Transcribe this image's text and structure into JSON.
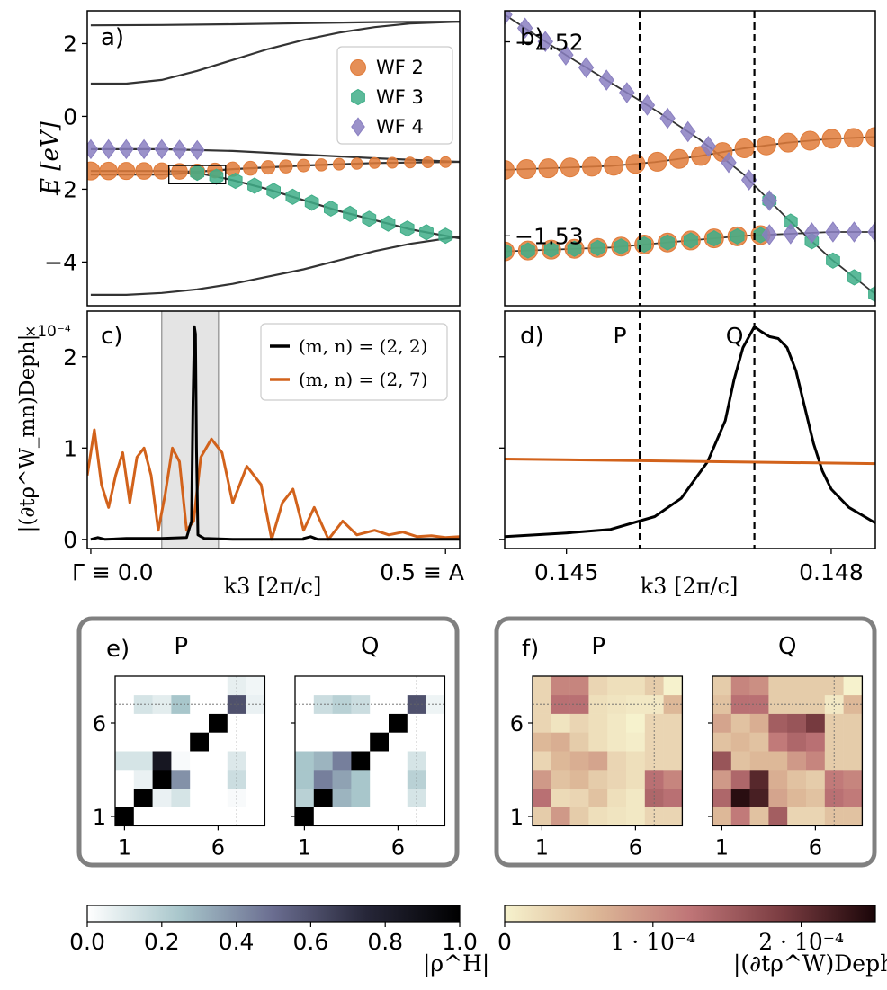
{
  "chart_data": [
    {
      "panel": "a)",
      "type": "line",
      "ylabel": "E [eV]",
      "xlim": [
        -0.005,
        0.52
      ],
      "ylim": [
        -5.2,
        2.9
      ],
      "yticks": [
        2,
        0,
        -2,
        -4
      ],
      "ytick_labels": [
        "2",
        "0",
        "−2",
        "−4"
      ],
      "legend": {
        "position": "top-right",
        "entries": [
          "WF 2",
          "WF 3",
          "WF 4"
        ]
      },
      "inset_box": {
        "x": [
          0.11,
          0.19
        ],
        "y": [
          -1.85,
          -1.35
        ]
      },
      "bands": [
        {
          "name": "band-top",
          "x": [
            0,
            0.1,
            0.2,
            0.3,
            0.4,
            0.52
          ],
          "y": [
            2.5,
            2.51,
            2.53,
            2.56,
            2.59,
            2.6
          ]
        },
        {
          "name": "band-upper",
          "x": [
            0,
            0.05,
            0.1,
            0.15,
            0.2,
            0.25,
            0.3,
            0.35,
            0.4,
            0.45,
            0.52
          ],
          "y": [
            0.9,
            0.9,
            1.0,
            1.25,
            1.55,
            1.85,
            2.1,
            2.3,
            2.45,
            2.55,
            2.6
          ]
        },
        {
          "name": "band-mid-a",
          "x": [
            0,
            0.1,
            0.2,
            0.3,
            0.4,
            0.52
          ],
          "y": [
            -0.9,
            -0.9,
            -0.95,
            -1.05,
            -1.15,
            -1.25
          ]
        },
        {
          "name": "band-mid-b",
          "x": [
            0,
            0.1,
            0.15,
            0.2,
            0.3,
            0.4,
            0.52
          ],
          "y": [
            -1.5,
            -1.5,
            -1.52,
            -1.45,
            -1.35,
            -1.28,
            -1.25
          ]
        },
        {
          "name": "band-mid-c",
          "x": [
            0,
            0.1,
            0.15,
            0.2,
            0.25,
            0.3,
            0.35,
            0.4,
            0.45,
            0.52
          ],
          "y": [
            -1.6,
            -1.6,
            -1.55,
            -1.75,
            -2.0,
            -2.3,
            -2.6,
            -2.85,
            -3.1,
            -3.35
          ]
        },
        {
          "name": "band-bottom",
          "x": [
            0,
            0.05,
            0.1,
            0.15,
            0.2,
            0.25,
            0.3,
            0.35,
            0.4,
            0.45,
            0.52
          ],
          "y": [
            -4.9,
            -4.9,
            -4.85,
            -4.75,
            -4.6,
            -4.4,
            -4.2,
            -3.95,
            -3.7,
            -3.5,
            -3.3
          ]
        }
      ],
      "series": [
        {
          "name": "WF 2",
          "color": "#e07b39",
          "marker": "circle",
          "band": "band-mid-b",
          "x_range": [
            0,
            0.5
          ],
          "n": 21
        },
        {
          "name": "WF 3",
          "color": "#3fae88",
          "marker": "hexagon",
          "band": "band-mid-c",
          "x_range": [
            0.15,
            0.5
          ],
          "n": 14
        },
        {
          "name": "WF 4",
          "color": "#8a7fc1",
          "marker": "diamond",
          "band": "band-mid-a",
          "x_range": [
            0,
            0.15
          ],
          "n": 7
        }
      ]
    },
    {
      "panel": "b)",
      "type": "line",
      "xlim": [
        0.1443,
        0.1485
      ],
      "ylim": [
        -1.5336,
        -1.5184
      ],
      "yticks": [
        -1.52,
        -1.53
      ],
      "ytick_labels": [
        "−1.52",
        "−1.53"
      ],
      "vlines": [
        {
          "label": "P",
          "x": 0.14583
        },
        {
          "label": "Q",
          "x": 0.14713
        }
      ],
      "bands": [
        {
          "name": "b-flat-upper",
          "x": [
            0.1443,
            0.1455,
            0.146,
            0.1465,
            0.147,
            0.1475,
            0.148,
            0.1485
          ],
          "y": [
            -1.5266,
            -1.5264,
            -1.5262,
            -1.5259,
            -1.5255,
            -1.5252,
            -1.525,
            -1.5249
          ]
        },
        {
          "name": "b-flat-lower",
          "x": [
            0.1443,
            0.1455,
            0.146,
            0.1465,
            0.147,
            0.1475,
            0.148,
            0.1485
          ],
          "y": [
            -1.5308,
            -1.5306,
            -1.5304,
            -1.5302,
            -1.53,
            -1.5299,
            -1.5298,
            -1.5298
          ]
        },
        {
          "name": "b-steep",
          "x": [
            0.1443,
            0.145,
            0.1455,
            0.146,
            0.1465,
            0.147,
            0.1475,
            0.148,
            0.1485
          ],
          "y": [
            -1.5186,
            -1.5207,
            -1.5221,
            -1.5235,
            -1.525,
            -1.5268,
            -1.5291,
            -1.5312,
            -1.533
          ]
        }
      ],
      "series": [
        {
          "name": "WF 2",
          "color": "#e07b39",
          "marker": "circle",
          "band": "b-flat-upper",
          "x_range": [
            0.1443,
            0.1485
          ],
          "n": 18
        },
        {
          "name": "WF 2",
          "color": "#e07b39",
          "marker": "circle",
          "band": "b-flat-lower",
          "x_range": [
            0.1443,
            0.1472
          ],
          "n": 12
        },
        {
          "name": "WF 3",
          "color": "#3fae88",
          "marker": "hexagon",
          "band": "b-flat-lower",
          "x_range": [
            0.1443,
            0.1472
          ],
          "n": 12
        },
        {
          "name": "WF 3",
          "color": "#3fae88",
          "marker": "hexagon",
          "band": "b-steep",
          "x_range": [
            0.1473,
            0.1485
          ],
          "n": 6
        },
        {
          "name": "WF 4",
          "color": "#8a7fc1",
          "marker": "diamond",
          "band": "b-steep",
          "x_range": [
            0.1443,
            0.1473
          ],
          "n": 14
        },
        {
          "name": "WF 4",
          "color": "#8a7fc1",
          "marker": "diamond",
          "band": "b-flat-lower",
          "x_range": [
            0.1473,
            0.1485
          ],
          "n": 6
        }
      ]
    },
    {
      "panel": "c)",
      "type": "line",
      "ylabel": "|(∂tρ^W_mn)Deph|",
      "y_scale_label": "×10⁻⁴",
      "xlabel": "k3 [2π/c]",
      "xlim": [
        -0.005,
        0.52
      ],
      "ylim": [
        -0.1,
        2.5
      ],
      "xtick_labels": [
        "Γ ≡ 0.0",
        "0.5 ≡ A"
      ],
      "yticks": [
        0,
        1,
        2
      ],
      "ytick_labels": [
        "0",
        "1",
        "2"
      ],
      "shaded_region": [
        0.1,
        0.18
      ],
      "legend": {
        "position": "top-right",
        "entries": [
          "(m, n) = (2, 2)",
          "(m, n) = (2, 7)"
        ]
      },
      "series": [
        {
          "name": "(m, n) = (2, 2)",
          "color": "#000000",
          "x": [
            0,
            0.01,
            0.02,
            0.05,
            0.1,
            0.135,
            0.142,
            0.144,
            0.146,
            0.1475,
            0.149,
            0.151,
            0.16,
            0.2,
            0.3,
            0.3,
            0.31,
            0.32,
            0.4,
            0.52
          ],
          "y": [
            0,
            0.02,
            0,
            0.01,
            0.01,
            0.02,
            0.2,
            1.5,
            2.33,
            2.25,
            1.0,
            0.05,
            0.01,
            0.0,
            0.0,
            0.01,
            0.03,
            0.0,
            0.0,
            0.0
          ]
        },
        {
          "name": "(m, n) = (2, 7)",
          "color": "#d2621b",
          "x": [
            -0.005,
            0.005,
            0.015,
            0.025,
            0.035,
            0.045,
            0.055,
            0.065,
            0.075,
            0.085,
            0.095,
            0.105,
            0.115,
            0.125,
            0.135,
            0.145,
            0.155,
            0.17,
            0.185,
            0.2,
            0.22,
            0.24,
            0.255,
            0.27,
            0.285,
            0.3,
            0.315,
            0.335,
            0.355,
            0.375,
            0.4,
            0.42,
            0.44,
            0.46,
            0.48,
            0.5,
            0.52
          ],
          "y": [
            0.7,
            1.2,
            0.6,
            0.35,
            0.7,
            0.95,
            0.4,
            0.9,
            1.0,
            0.7,
            0.1,
            0.5,
            1.0,
            0.85,
            0.1,
            0.2,
            0.9,
            1.1,
            0.95,
            0.4,
            0.8,
            0.6,
            0.0,
            0.4,
            0.55,
            0.1,
            0.35,
            0.0,
            0.2,
            0.05,
            0.1,
            0.05,
            0.08,
            0.03,
            0.04,
            0.02,
            0.03
          ]
        }
      ]
    },
    {
      "panel": "d)",
      "type": "line",
      "xlabel": "k3 [2π/c]",
      "xlim": [
        0.1443,
        0.1485
      ],
      "ylim": [
        -0.1,
        2.5
      ],
      "xticks": [
        0.145,
        0.148
      ],
      "xtick_labels": [
        "0.145",
        "0.148"
      ],
      "vlines": [
        {
          "label": "P",
          "x": 0.14583
        },
        {
          "label": "Q",
          "x": 0.14713
        }
      ],
      "series": [
        {
          "name": "(m, n) = (2, 2)",
          "color": "#000000",
          "x": [
            0.1443,
            0.145,
            0.1455,
            0.146,
            0.1463,
            0.1466,
            0.1468,
            0.1469,
            0.147,
            0.14713,
            0.1472,
            0.1473,
            0.1474,
            0.1475,
            0.1476,
            0.1477,
            0.1478,
            0.1479,
            0.148,
            0.1482,
            0.1485
          ],
          "y": [
            0.03,
            0.07,
            0.11,
            0.25,
            0.45,
            0.85,
            1.3,
            1.75,
            2.1,
            2.33,
            2.28,
            2.22,
            2.2,
            2.1,
            1.85,
            1.45,
            1.05,
            0.75,
            0.55,
            0.35,
            0.18
          ]
        },
        {
          "name": "(m, n) = (2, 7)",
          "color": "#d2621b",
          "x": [
            0.1443,
            0.1485
          ],
          "y": [
            0.88,
            0.83
          ]
        }
      ]
    },
    {
      "panel": "e)",
      "type": "heatmap",
      "colorbar_label": "|ρ^H|",
      "colorbar_ticks": [
        "0.0",
        "0.2",
        "0.4",
        "0.6",
        "0.8",
        "1.0"
      ],
      "matrix_labels": [
        "P",
        "Q"
      ],
      "axis_tick_labels": [
        "1",
        "6"
      ],
      "matrices": [
        [
          [
            1.0,
            0,
            0,
            0,
            0,
            0,
            0,
            0
          ],
          [
            0,
            1.0,
            0.06,
            0.12,
            0,
            0,
            0.02,
            0
          ],
          [
            0,
            0.06,
            1.0,
            0.4,
            0,
            0,
            0.15,
            0
          ],
          [
            0.12,
            0.12,
            0.85,
            0.02,
            0,
            0,
            0.1,
            0
          ],
          [
            0,
            0,
            0,
            0,
            1.0,
            0,
            0,
            0
          ],
          [
            0,
            0,
            0,
            0,
            0,
            1.0,
            0,
            0
          ],
          [
            0,
            0.12,
            0.08,
            0.25,
            0,
            0,
            0.6,
            0.06
          ],
          [
            0,
            0,
            0,
            0,
            0,
            0,
            0.07,
            0.04
          ]
        ],
        [
          [
            1.0,
            0,
            0,
            0,
            0,
            0,
            0,
            0
          ],
          [
            0.2,
            1.0,
            0.3,
            0.25,
            0,
            0,
            0.12,
            0
          ],
          [
            0.25,
            0.45,
            0.35,
            0.25,
            0,
            0,
            0.2,
            0
          ],
          [
            0.25,
            0.3,
            0.45,
            1.0,
            0,
            0,
            0.12,
            0
          ],
          [
            0,
            0,
            0,
            0,
            1.0,
            0,
            0,
            0
          ],
          [
            0,
            0,
            0,
            0,
            0,
            1.0,
            0,
            0
          ],
          [
            0,
            0.15,
            0.2,
            0.15,
            0,
            0,
            0.6,
            0.05
          ],
          [
            0,
            0,
            0,
            0,
            0,
            0,
            0,
            0
          ]
        ]
      ]
    },
    {
      "panel": "f)",
      "type": "heatmap",
      "colorbar_label": "|(∂tρ^W)Deph|",
      "colorbar_ticks": [
        "0",
        "1 · 10⁻⁴",
        "2 · 10⁻⁴"
      ],
      "colorbar_range": [
        0,
        2.5
      ],
      "matrix_labels": [
        "P",
        "Q"
      ],
      "axis_tick_labels": [
        "1",
        "6"
      ],
      "matrices": [
        [
          [
            0.4,
            0.9,
            0.4,
            0.2,
            0.15,
            0.1,
            0.3,
            0.3
          ],
          [
            1.3,
            0.25,
            0.3,
            0.5,
            0.2,
            0.1,
            1.4,
            1.3
          ],
          [
            0.9,
            0.5,
            0.6,
            0.4,
            0.3,
            0.2,
            1.3,
            1.1
          ],
          [
            0.3,
            0.6,
            0.7,
            0.8,
            0.3,
            0.2,
            0.3,
            0.3
          ],
          [
            0.6,
            0.7,
            0.4,
            0.2,
            0.1,
            0.05,
            0.3,
            0.3
          ],
          [
            0.3,
            0.15,
            0.3,
            0.2,
            0.1,
            0.0,
            0.3,
            0.3
          ],
          [
            0.3,
            1.3,
            1.3,
            0.2,
            0.15,
            0.1,
            0.1,
            0.6
          ],
          [
            0.3,
            1.1,
            1.1,
            0.3,
            0.2,
            0.2,
            0.4,
            0.0
          ]
        ],
        [
          [
            0.6,
            1.2,
            0.5,
            1.5,
            0.3,
            0.3,
            0.5,
            0.5
          ],
          [
            1.4,
            2.4,
            2.2,
            0.8,
            0.6,
            0.5,
            1.3,
            1.2
          ],
          [
            0.9,
            1.4,
            2.1,
            0.7,
            0.5,
            0.4,
            1.2,
            1.1
          ],
          [
            1.6,
            0.5,
            0.6,
            0.6,
            0.9,
            1.1,
            0.4,
            0.4
          ],
          [
            0.5,
            0.6,
            0.5,
            1.2,
            1.4,
            1.3,
            0.4,
            0.4
          ],
          [
            0.8,
            0.5,
            0.7,
            1.5,
            1.6,
            1.9,
            0.4,
            0.4
          ],
          [
            0.5,
            1.3,
            1.3,
            0.4,
            0.4,
            0.4,
            0.1,
            0.6
          ],
          [
            0.4,
            1.1,
            1.0,
            0.4,
            0.4,
            0.4,
            0.4,
            0.0
          ]
        ]
      ]
    }
  ]
}
